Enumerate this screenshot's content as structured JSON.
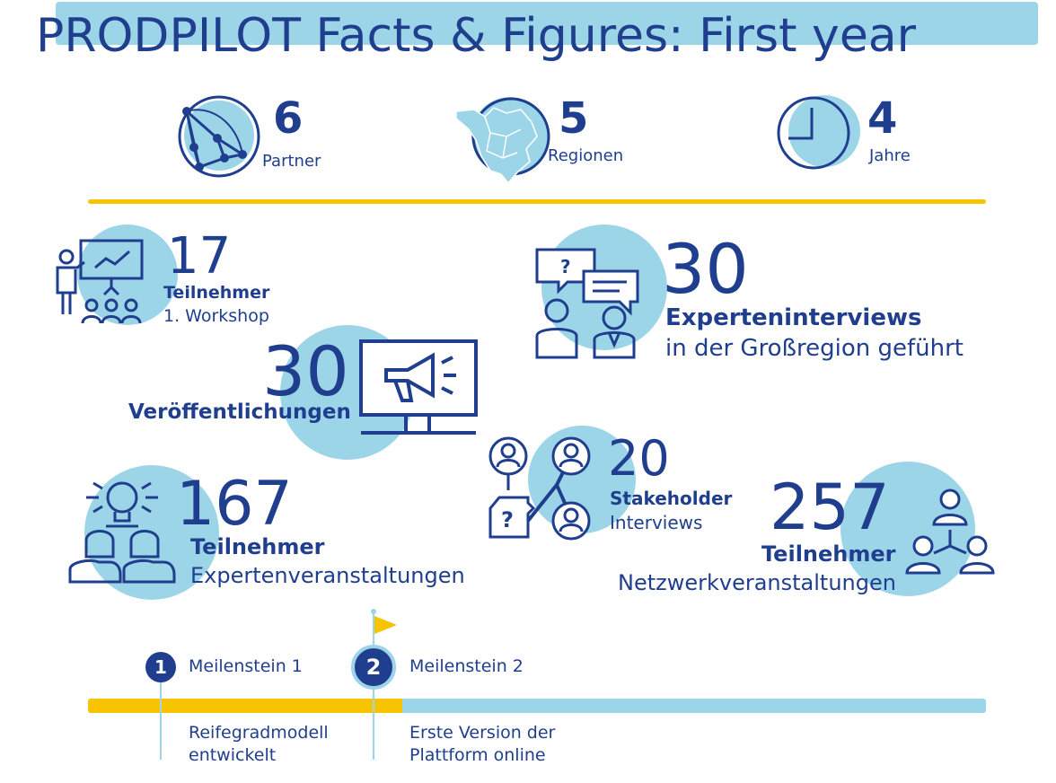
{
  "title": "PRODPILOT Facts & Figures: First year",
  "colors": {
    "navy": "#1f3e8e",
    "light_blue": "#9dd5e8",
    "yellow": "#f8c300"
  },
  "top_stats": [
    {
      "value": "6",
      "label": "Partner",
      "icon": "network-globe-icon"
    },
    {
      "value": "5",
      "label": "Regionen",
      "icon": "region-map-icon"
    },
    {
      "value": "4",
      "label": "Jahre",
      "icon": "clock-icon"
    }
  ],
  "stats": {
    "workshop": {
      "value": "17",
      "line1": "Teilnehmer",
      "line2": "1. Workshop",
      "icon": "presenter-audience-icon"
    },
    "interviews": {
      "value": "30",
      "line1": "Experteninterviews",
      "line2": "in der Großregion geführt",
      "icon": "interview-chat-icon"
    },
    "publications": {
      "value": "30",
      "line1": "Veröffentlichungen",
      "icon": "monitor-megaphone-icon"
    },
    "stakeholder": {
      "value": "20",
      "line1": "Stakeholder",
      "line2": "Interviews",
      "icon": "stakeholder-network-icon"
    },
    "expert_events": {
      "value": "167",
      "line1": "Teilnehmer",
      "line2": "Expertenveranstaltungen",
      "icon": "lightbulb-people-icon"
    },
    "network_events": {
      "value": "257",
      "line1": "Teilnehmer",
      "line2": "Netzwerkveranstaltungen",
      "icon": "people-network-icon"
    }
  },
  "timeline": {
    "progress": 0.35,
    "milestones": [
      {
        "number": "1",
        "label": "Meilenstein 1",
        "desc_line1": "Reifegradmodell",
        "desc_line2": "entwickelt"
      },
      {
        "number": "2",
        "label": "Meilenstein 2",
        "desc_line1": "Erste Version der",
        "desc_line2": "Plattform online"
      }
    ]
  }
}
